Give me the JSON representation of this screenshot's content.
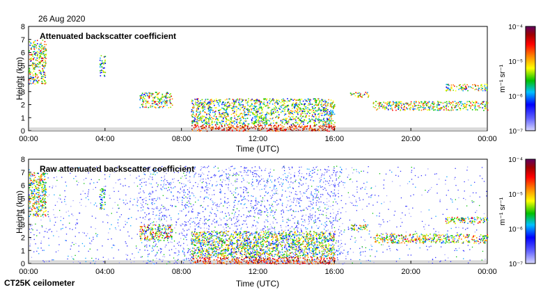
{
  "header": {
    "date": "26 Aug 2020"
  },
  "footer": {
    "instrument": "CT25K ceilometer"
  },
  "colors": {
    "low": "#c8c8ff",
    "blue": "#0000ff",
    "green": "#00c000",
    "yellow": "#ffff00",
    "orange": "#ff8000",
    "red": "#ff0000",
    "dark": "#800080",
    "noise": "#d9d9d9"
  },
  "chart_data": [
    {
      "type": "heatmap",
      "title": "Attenuated backscatter coefficient",
      "xlabel": "Time (UTC)",
      "ylabel": "Height (km)",
      "xlim": [
        0,
        24
      ],
      "ylim": [
        0,
        8
      ],
      "x_ticks": [
        "00:00",
        "04:00",
        "08:00",
        "12:00",
        "16:00",
        "20:00",
        "00:00"
      ],
      "y_ticks": [
        "0",
        "1",
        "2",
        "3",
        "4",
        "5",
        "6",
        "7",
        "8"
      ],
      "colorbar": {
        "label": "m⁻¹ sr⁻¹",
        "scale": "log",
        "range": [
          1e-07,
          0.0001
        ],
        "ticks": [
          "10⁻⁴",
          "10⁻⁵",
          "10⁻⁶",
          "10⁻⁷"
        ]
      },
      "features": [
        {
          "type": "layer",
          "t_start": 0,
          "t_end": 0.9,
          "h_bottom": 3.6,
          "h_top": 7.0,
          "level": 0.7
        },
        {
          "type": "layer",
          "t_start": 3.7,
          "t_end": 4.0,
          "h_bottom": 4.2,
          "h_top": 5.8,
          "level": 0.55
        },
        {
          "type": "layer",
          "t_start": 5.8,
          "t_end": 7.5,
          "h_bottom": 1.8,
          "h_top": 3.0,
          "level": 0.7
        },
        {
          "type": "boundary_layer",
          "t_start": 8.5,
          "t_end": 16.0,
          "h_bottom": 0,
          "h_top": 2.5,
          "level": 0.65
        },
        {
          "type": "layer",
          "t_start": 16.8,
          "t_end": 17.8,
          "h_bottom": 2.6,
          "h_top": 3.0,
          "level": 0.7
        },
        {
          "type": "layer",
          "t_start": 18.0,
          "t_end": 24.0,
          "h_bottom": 1.6,
          "h_top": 2.3,
          "level": 0.7
        },
        {
          "type": "layer",
          "t_start": 21.8,
          "t_end": 24.0,
          "h_bottom": 3.1,
          "h_top": 3.6,
          "level": 0.7
        }
      ]
    },
    {
      "type": "heatmap",
      "title": "Raw attenuated backscatter coefficient",
      "xlabel": "Time (UTC)",
      "ylabel": "Height (km)",
      "xlim": [
        0,
        24
      ],
      "ylim": [
        0,
        8
      ],
      "x_ticks": [
        "00:00",
        "04:00",
        "08:00",
        "12:00",
        "16:00",
        "20:00",
        "00:00"
      ],
      "y_ticks": [
        "0",
        "1",
        "2",
        "3",
        "4",
        "5",
        "6",
        "7",
        "8"
      ],
      "colorbar": {
        "label": "m⁻¹ sr⁻¹",
        "scale": "log",
        "range": [
          1e-07,
          0.0001
        ],
        "ticks": [
          "10⁻⁴",
          "10⁻⁵",
          "10⁻⁶",
          "10⁻⁷"
        ]
      },
      "noise_bands": [
        {
          "t_start": 0,
          "t_end": 5.8,
          "density": 0.25
        },
        {
          "t_start": 5.8,
          "t_end": 8.0,
          "density": 0.7
        },
        {
          "t_start": 8.0,
          "t_end": 16.3,
          "density": 0.85
        },
        {
          "t_start": 16.3,
          "t_end": 18.0,
          "density": 0.3
        },
        {
          "t_start": 18.0,
          "t_end": 24.0,
          "density": 0.15
        }
      ]
    }
  ]
}
